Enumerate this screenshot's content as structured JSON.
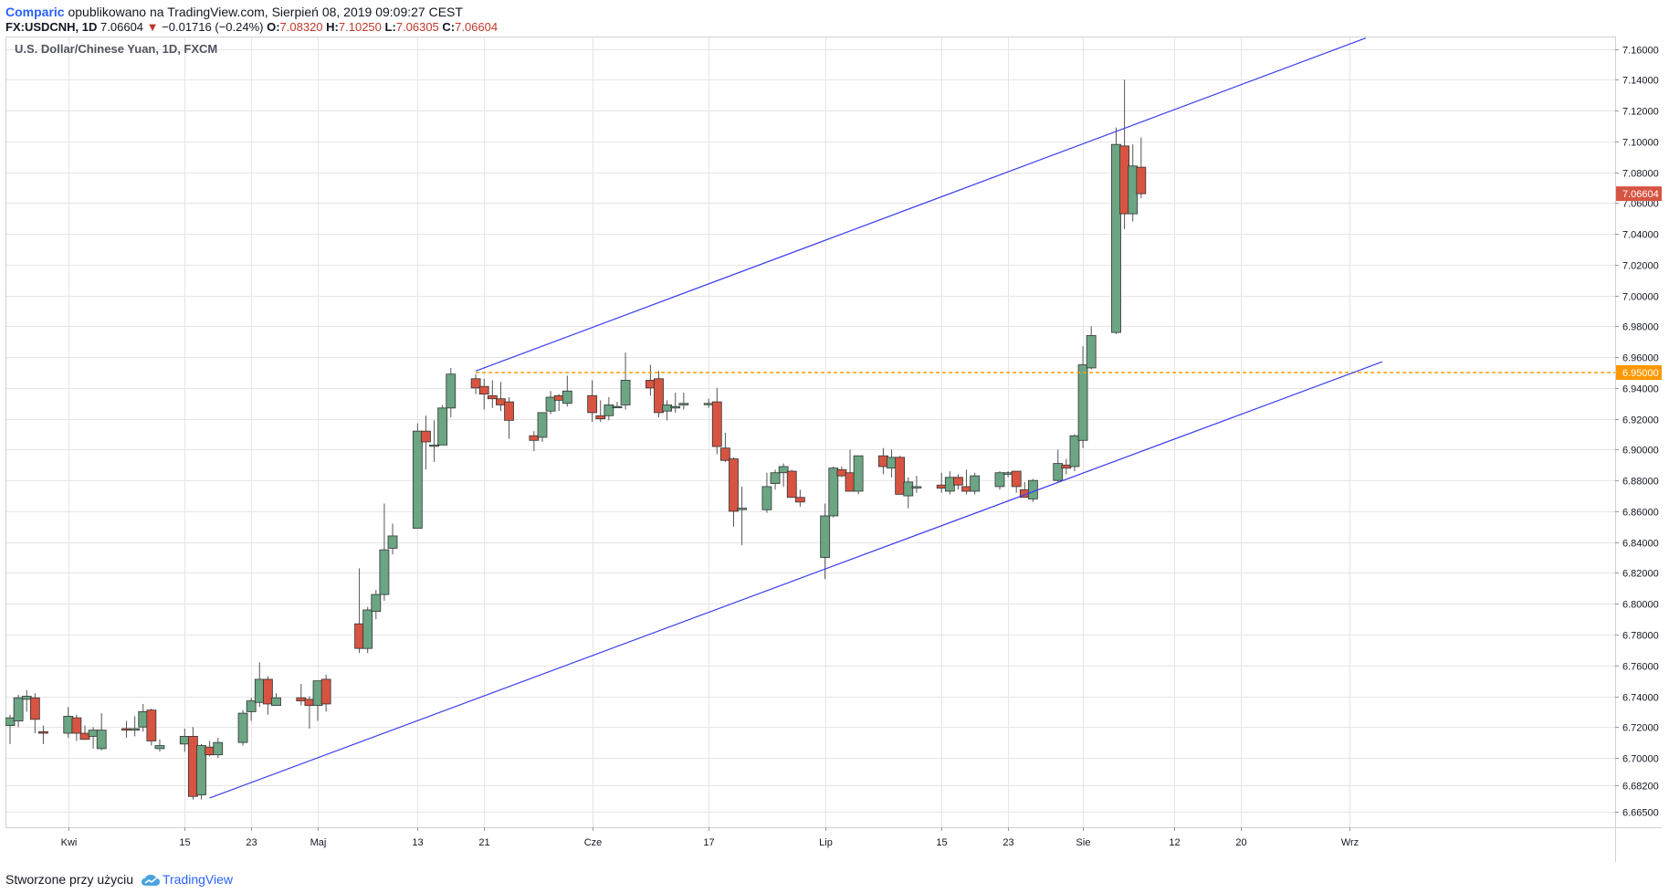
{
  "header": {
    "publisher": "Comparic",
    "published_text": "opublikowano na TradingView.com, Sierpień 08, 2019 09:09:27 CEST"
  },
  "ohlc_line": {
    "symbol_text": "FX:USDCNH, 1D",
    "last": "7.06604",
    "change": "−0.01716 (−0.24%)",
    "open_label": "O:",
    "open": "7.08320",
    "high_label": "H:",
    "high": "7.10250",
    "low_label": "L:",
    "low": "7.06305",
    "close_label": "C:",
    "close": "7.06604"
  },
  "footer": {
    "created_text": "Stworzone przy użyciu",
    "brand": "TradingView"
  },
  "colors": {
    "up": "#6ba583",
    "down": "#d75442",
    "channel": "#3c3cf0",
    "level": "#ff9800",
    "grid": "#e6e6e6",
    "last_price_bg": "#d75442",
    "level_bg": "#ff9800"
  },
  "chart_data": {
    "type": "candlestick",
    "title": "U.S. Dollar/Chinese Yuan, 1D, FXCM",
    "ylim": [
      6.655,
      7.168
    ],
    "y_ticks": [
      "7.16000",
      "7.14000",
      "7.12000",
      "7.10000",
      "7.08000",
      "7.06000",
      "7.04000",
      "7.02000",
      "7.00000",
      "6.98000",
      "6.96000",
      "6.94000",
      "6.92000",
      "6.90000",
      "6.88000",
      "6.86000",
      "6.84000",
      "6.82000",
      "6.80000",
      "6.78000",
      "6.76000",
      "6.74000",
      "6.72000",
      "6.70000",
      "6.68200",
      "6.66500"
    ],
    "x_ticks": [
      {
        "label": "Kwi",
        "date": "2019-04-01"
      },
      {
        "label": "15",
        "date": "2019-04-15"
      },
      {
        "label": "23",
        "date": "2019-04-23"
      },
      {
        "label": "Maj",
        "date": "2019-05-01"
      },
      {
        "label": "13",
        "date": "2019-05-13"
      },
      {
        "label": "21",
        "date": "2019-05-21"
      },
      {
        "label": "Cze",
        "date": "2019-06-03"
      },
      {
        "label": "17",
        "date": "2019-06-17"
      },
      {
        "label": "Lip",
        "date": "2019-07-01"
      },
      {
        "label": "15",
        "date": "2019-07-15"
      },
      {
        "label": "23",
        "date": "2019-07-23"
      },
      {
        "label": "Sie",
        "date": "2019-08-01"
      },
      {
        "label": "12",
        "date": "2019-08-12"
      },
      {
        "label": "20",
        "date": "2019-08-20"
      },
      {
        "label": "Wrz",
        "date": "2019-09-02"
      }
    ],
    "last_price_label": "7.06604",
    "level_label": "6.95000",
    "horizontal_level": 6.95,
    "channel_upper": [
      [
        "2019-05-20",
        6.951
      ],
      [
        "2019-09-04",
        7.167
      ]
    ],
    "channel_lower": [
      [
        "2019-04-18",
        6.674
      ],
      [
        "2019-09-06",
        6.957
      ]
    ],
    "level_start": "2019-05-20",
    "candles": [
      [
        "2019-03-25",
        6.721,
        6.728,
        6.709,
        6.726
      ],
      [
        "2019-03-26",
        6.724,
        6.741,
        6.72,
        6.739
      ],
      [
        "2019-03-27",
        6.738,
        6.744,
        6.73,
        6.74
      ],
      [
        "2019-03-28",
        6.739,
        6.742,
        6.716,
        6.725
      ],
      [
        "2019-03-29",
        6.717,
        6.721,
        6.709,
        6.716
      ],
      [
        "2019-04-01",
        6.716,
        6.733,
        6.713,
        6.727
      ],
      [
        "2019-04-02",
        6.726,
        6.728,
        6.711,
        6.716
      ],
      [
        "2019-04-03",
        6.716,
        6.721,
        6.712,
        6.712
      ],
      [
        "2019-04-04",
        6.714,
        6.72,
        6.706,
        6.718
      ],
      [
        "2019-04-05",
        6.706,
        6.729,
        6.705,
        6.718
      ],
      [
        "2019-04-08",
        6.719,
        6.724,
        6.713,
        6.718
      ],
      [
        "2019-04-09",
        6.718,
        6.727,
        6.714,
        6.719
      ],
      [
        "2019-04-10",
        6.72,
        6.735,
        6.717,
        6.73
      ],
      [
        "2019-04-11",
        6.731,
        6.732,
        6.708,
        6.711
      ],
      [
        "2019-04-12",
        6.706,
        6.712,
        6.704,
        6.708
      ],
      [
        "2019-04-15",
        6.709,
        6.719,
        6.704,
        6.714
      ],
      [
        "2019-04-16",
        6.714,
        6.72,
        6.673,
        6.675
      ],
      [
        "2019-04-17",
        6.676,
        6.709,
        6.673,
        6.708
      ],
      [
        "2019-04-18",
        6.707,
        6.711,
        6.701,
        6.702
      ],
      [
        "2019-04-19",
        6.702,
        6.713,
        6.7,
        6.71
      ],
      [
        "2019-04-22",
        6.71,
        6.731,
        6.708,
        6.729
      ],
      [
        "2019-04-23",
        6.73,
        6.739,
        6.724,
        6.737
      ],
      [
        "2019-04-24",
        6.736,
        6.762,
        6.733,
        6.751
      ],
      [
        "2019-04-25",
        6.751,
        6.753,
        6.728,
        6.735
      ],
      [
        "2019-04-26",
        6.734,
        6.742,
        6.734,
        6.739
      ],
      [
        "2019-04-29",
        6.739,
        6.748,
        6.734,
        6.737
      ],
      [
        "2019-04-30",
        6.738,
        6.74,
        6.719,
        6.734
      ],
      [
        "2019-05-01",
        6.734,
        6.75,
        6.724,
        6.75
      ],
      [
        "2019-05-02",
        6.751,
        6.754,
        6.73,
        6.735
      ],
      [
        "2019-05-06",
        6.787,
        6.823,
        6.768,
        6.771
      ],
      [
        "2019-05-07",
        6.771,
        6.798,
        6.768,
        6.796
      ],
      [
        "2019-05-08",
        6.795,
        6.809,
        6.79,
        6.806
      ],
      [
        "2019-05-09",
        6.806,
        6.865,
        6.802,
        6.835
      ],
      [
        "2019-05-10",
        6.836,
        6.852,
        6.832,
        6.844
      ],
      [
        "2019-05-13",
        6.849,
        6.917,
        6.849,
        6.912
      ],
      [
        "2019-05-14",
        6.912,
        6.922,
        6.887,
        6.905
      ],
      [
        "2019-05-15",
        6.903,
        6.919,
        6.892,
        6.903
      ],
      [
        "2019-05-16",
        6.903,
        6.929,
        6.903,
        6.927
      ],
      [
        "2019-05-17",
        6.927,
        6.953,
        6.921,
        6.949
      ],
      [
        "2019-05-20",
        6.946,
        6.949,
        6.936,
        6.94
      ],
      [
        "2019-05-21",
        6.941,
        6.946,
        6.926,
        6.936
      ],
      [
        "2019-05-22",
        6.935,
        6.945,
        6.927,
        6.933
      ],
      [
        "2019-05-23",
        6.933,
        6.944,
        6.925,
        6.929
      ],
      [
        "2019-05-24",
        6.931,
        6.934,
        6.907,
        6.919
      ],
      [
        "2019-05-27",
        6.909,
        6.912,
        6.899,
        6.906
      ],
      [
        "2019-05-28",
        6.908,
        6.924,
        6.905,
        6.924
      ],
      [
        "2019-05-29",
        6.925,
        6.938,
        6.923,
        6.934
      ],
      [
        "2019-05-30",
        6.935,
        6.936,
        6.925,
        6.932
      ],
      [
        "2019-05-31",
        6.93,
        6.948,
        6.928,
        6.938
      ],
      [
        "2019-06-03",
        6.935,
        6.945,
        6.918,
        6.924
      ],
      [
        "2019-06-04",
        6.922,
        6.932,
        6.918,
        6.92
      ],
      [
        "2019-06-05",
        6.922,
        6.934,
        6.919,
        6.929
      ],
      [
        "2019-06-06",
        6.928,
        6.931,
        6.927,
        6.928
      ],
      [
        "2019-06-07",
        6.929,
        6.963,
        6.926,
        6.945
      ],
      [
        "2019-06-10",
        6.945,
        6.955,
        6.935,
        6.94
      ],
      [
        "2019-06-11",
        6.946,
        6.951,
        6.921,
        6.924
      ],
      [
        "2019-06-12",
        6.925,
        6.932,
        6.919,
        6.929
      ],
      [
        "2019-06-13",
        6.927,
        6.937,
        6.924,
        6.928
      ],
      [
        "2019-06-14",
        6.929,
        6.937,
        6.926,
        6.93
      ],
      [
        "2019-06-17",
        6.93,
        6.933,
        6.927,
        6.93
      ],
      [
        "2019-06-18",
        6.931,
        6.94,
        6.897,
        6.902
      ],
      [
        "2019-06-19",
        6.901,
        6.911,
        6.892,
        6.893
      ],
      [
        "2019-06-20",
        6.894,
        6.895,
        6.85,
        6.86
      ],
      [
        "2019-06-21",
        6.861,
        6.876,
        6.838,
        6.862
      ],
      [
        "2019-06-24",
        6.861,
        6.885,
        6.859,
        6.876
      ],
      [
        "2019-06-25",
        6.878,
        6.887,
        6.874,
        6.885
      ],
      [
        "2019-06-26",
        6.885,
        6.891,
        6.876,
        6.889
      ],
      [
        "2019-06-27",
        6.886,
        6.887,
        6.869,
        6.869
      ],
      [
        "2019-06-28",
        6.869,
        6.874,
        6.863,
        6.866
      ],
      [
        "2019-07-01",
        6.83,
        6.865,
        6.816,
        6.857
      ],
      [
        "2019-07-02",
        6.857,
        6.889,
        6.856,
        6.888
      ],
      [
        "2019-07-03",
        6.887,
        6.889,
        6.882,
        6.883
      ],
      [
        "2019-07-04",
        6.885,
        6.9,
        6.873,
        6.873
      ],
      [
        "2019-07-05",
        6.873,
        6.894,
        6.871,
        6.896
      ],
      [
        "2019-07-08",
        6.896,
        6.901,
        6.884,
        6.889
      ],
      [
        "2019-07-09",
        6.888,
        6.9,
        6.882,
        6.895
      ],
      [
        "2019-07-10",
        6.895,
        6.896,
        6.871,
        6.871
      ],
      [
        "2019-07-11",
        6.87,
        6.882,
        6.862,
        6.879
      ],
      [
        "2019-07-12",
        6.876,
        6.883,
        6.872,
        6.876
      ],
      [
        "2019-07-15",
        6.877,
        6.885,
        6.872,
        6.875
      ],
      [
        "2019-07-16",
        6.873,
        6.886,
        6.871,
        6.882
      ],
      [
        "2019-07-17",
        6.882,
        6.884,
        6.874,
        6.877
      ],
      [
        "2019-07-18",
        6.876,
        6.887,
        6.871,
        6.873
      ],
      [
        "2019-07-19",
        6.873,
        6.885,
        6.871,
        6.883
      ],
      [
        "2019-07-22",
        6.876,
        6.886,
        6.874,
        6.885
      ],
      [
        "2019-07-23",
        6.884,
        6.886,
        6.882,
        6.885
      ],
      [
        "2019-07-24",
        6.886,
        6.884,
        6.872,
        6.876
      ],
      [
        "2019-07-25",
        6.874,
        6.879,
        6.869,
        6.869
      ],
      [
        "2019-07-26",
        6.868,
        6.881,
        6.866,
        6.88
      ],
      [
        "2019-07-29",
        6.88,
        6.9,
        6.879,
        6.891
      ],
      [
        "2019-07-30",
        6.89,
        6.894,
        6.884,
        6.888
      ],
      [
        "2019-07-31",
        6.889,
        6.91,
        6.886,
        6.909
      ],
      [
        "2019-08-01",
        6.906,
        6.967,
        6.901,
        6.955
      ],
      [
        "2019-08-02",
        6.953,
        6.98,
        6.952,
        6.974
      ],
      [
        "2019-08-05",
        6.976,
        7.109,
        6.975,
        7.098
      ],
      [
        "2019-08-06",
        7.097,
        7.14,
        7.043,
        7.053
      ],
      [
        "2019-08-07",
        7.053,
        7.098,
        7.048,
        7.084
      ],
      [
        "2019-08-08",
        7.0832,
        7.1025,
        7.06305,
        7.06604
      ]
    ]
  }
}
